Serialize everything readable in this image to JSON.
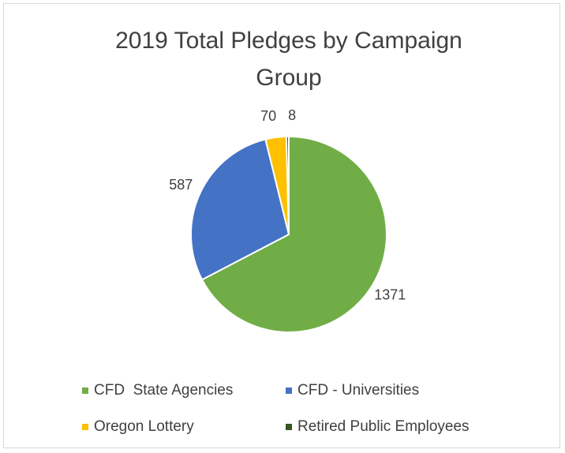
{
  "chart_data": {
    "type": "pie",
    "title": "2019 Total Pledges by Campaign Group",
    "categories": [
      "CFD  State Agencies",
      "CFD - Universities",
      "Oregon Lottery",
      "Retired Public Employees"
    ],
    "values": [
      1371,
      587,
      70,
      8
    ],
    "colors": [
      "#70ad47",
      "#4472c4",
      "#ffc000",
      "#375623"
    ],
    "legend": "bottom"
  }
}
